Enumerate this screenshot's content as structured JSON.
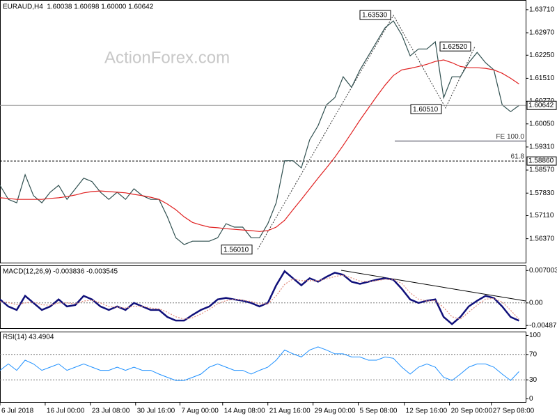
{
  "chart_data": [
    {
      "type": "line",
      "title": "EURAUD,H4  1.60038 1.60698 1.60000 1.60642",
      "watermark": "ActionForex.com",
      "xlim": [
        0,
        62.8
      ],
      "ylim": [
        1.5558,
        1.6402
      ],
      "grid": false,
      "yticks": [
        {
          "value": 1.6371,
          "label": "1.63710"
        },
        {
          "value": 1.6297,
          "label": "1.62970"
        },
        {
          "value": 1.6225,
          "label": "1.62250"
        },
        {
          "value": 1.6151,
          "label": "1.61510"
        },
        {
          "value": 1.6077,
          "label": "1.60770"
        },
        {
          "value": 1.6005,
          "label": "1.60050"
        },
        {
          "value": 1.5931,
          "label": "1.59310"
        },
        {
          "value": 1.5857,
          "label": "1.58570"
        },
        {
          "value": 1.5783,
          "label": "1.57830"
        },
        {
          "value": 1.5711,
          "label": "1.57110"
        },
        {
          "value": 1.5637,
          "label": "1.56370"
        }
      ],
      "series": [
        {
          "color": "#2f4f4f",
          "values": [
            1.5808,
            1.5763,
            1.5752,
            1.5842,
            1.5775,
            1.5752,
            1.5786,
            1.5808,
            1.5763,
            1.5797,
            1.5831,
            1.582,
            1.5786,
            1.5763,
            1.5786,
            1.5763,
            1.5797,
            1.5775,
            1.5763,
            1.5763,
            1.5707,
            1.564,
            1.5618,
            1.5629,
            1.5629,
            1.5629,
            1.564,
            1.5685,
            1.5674,
            1.5674,
            1.564,
            1.564,
            1.5685,
            1.5752,
            1.5887,
            1.5887,
            1.5864,
            1.5954,
            1.5999,
            1.6066,
            1.6089,
            1.6156,
            1.6122,
            1.6178,
            1.6223,
            1.6268,
            1.6313,
            1.6335,
            1.629,
            1.6223,
            1.6245,
            1.6245,
            1.6268,
            1.6089,
            1.6156,
            1.6156,
            1.6201,
            1.6234,
            1.6201,
            1.6178,
            1.6066,
            1.6044,
            1.6064
          ]
        },
        {
          "color": "#e02020",
          "values": [
            1.5768,
            1.5766,
            1.5763,
            1.5763,
            1.5763,
            1.5763,
            1.5766,
            1.5768,
            1.5772,
            1.5777,
            1.5784,
            1.5788,
            1.579,
            1.5788,
            1.5786,
            1.5784,
            1.5779,
            1.5775,
            1.577,
            1.5763,
            1.5748,
            1.573,
            1.5707,
            1.5689,
            1.5681,
            1.5674,
            1.5672,
            1.5669,
            1.5667,
            1.5665,
            1.5663,
            1.566,
            1.5663,
            1.5674,
            1.5696,
            1.573,
            1.5763,
            1.5797,
            1.5831,
            1.5864,
            1.5898,
            1.5936,
            1.5976,
            1.6017,
            1.6055,
            1.6093,
            1.6129,
            1.616,
            1.6178,
            1.6183,
            1.6189,
            1.6196,
            1.6205,
            1.621,
            1.6201,
            1.6189,
            1.6185,
            1.6185,
            1.6183,
            1.6178,
            1.6167,
            1.6151,
            1.6133
          ]
        }
      ],
      "last_price": {
        "value": 1.60642,
        "label": "1.60642"
      },
      "levels": [
        {
          "value": 1.5886,
          "label": "1.58860"
        }
      ],
      "fib_levels": [
        {
          "value": 1.595,
          "label": "FE 100.0"
        },
        {
          "value": 1.5886,
          "label": "61.8"
        }
      ],
      "annotations": [
        {
          "value": 1.6353,
          "label": "1.63530"
        },
        {
          "value": 1.6252,
          "label": "1.62520"
        },
        {
          "value": 1.6051,
          "label": "1.60510"
        },
        {
          "value": 1.5601,
          "label": "1.56010"
        }
      ]
    },
    {
      "type": "line",
      "title": "MACD(12,26,9) -0.003836 -0.003545",
      "xlim": [
        0,
        62.8
      ],
      "ylim": [
        -0.0056,
        0.0081
      ],
      "grid": true,
      "yticks": [
        0.007003,
        {
          "value": 0,
          "label": "0.00"
        },
        -0.004873
      ],
      "series": [
        {
          "color": "#10107a",
          "values": [
            0.00076,
            -0.00076,
            -0.00152,
            0.00152,
            0,
            -0.00152,
            -0.00076,
            0.00076,
            -0.00076,
            -0.00046,
            0.00152,
            0.00076,
            -0.00076,
            -0.00152,
            -0.00076,
            -0.00152,
            0,
            -0.00076,
            -0.00152,
            -0.00152,
            -0.00304,
            -0.00381,
            -0.00381,
            -0.00259,
            -0.00152,
            -0.00076,
            0.00076,
            0.00107,
            0.00076,
            0.00046,
            0,
            -0.00076,
            0,
            0.00381,
            0.00685,
            0.00533,
            0.00381,
            0.00533,
            0.00457,
            0.00563,
            0.00654,
            0.00609,
            0.00457,
            0.00411,
            0.00457,
            0.00502,
            0.00533,
            0.00502,
            0.00304,
            0.00076,
            0,
            0.00046,
            0.00076,
            -0.00304,
            -0.00457,
            -0.00304,
            -0.00076,
            0.00046,
            0.00152,
            0.00107,
            -0.00076,
            -0.00304,
            -0.00384
          ]
        },
        {
          "color": "#e08a7a",
          "dashed": true,
          "values": [
            0.0003,
            0.0001,
            -0.0004,
            0,
            0.0002,
            -0.0004,
            -0.0005,
            0,
            0,
            -0.0002,
            0.0004,
            0.0006,
            0,
            -0.0008,
            -0.0009,
            -0.0011,
            -0.0007,
            -0.0007,
            -0.0011,
            -0.0013,
            -0.002,
            -0.003,
            -0.0035,
            -0.0032,
            -0.0024,
            -0.0014,
            -0.0002,
            0.0005,
            0.0008,
            0.0006,
            0.0003,
            -0.0002,
            -0.0002,
            0.0015,
            0.004,
            0.0052,
            0.0048,
            0.0048,
            0.0048,
            0.0052,
            0.0057,
            0.006,
            0.0054,
            0.0047,
            0.0046,
            0.0048,
            0.0051,
            0.0051,
            0.0042,
            0.0022,
            0.0008,
            0.0004,
            0.0005,
            -0.001,
            -0.003,
            -0.0035,
            -0.002,
            -0.0005,
            0.0008,
            0.001,
            0.0002,
            -0.0016,
            -0.0035
          ]
        }
      ]
    },
    {
      "type": "line",
      "title": "RSI(14) 43.4904",
      "xlim": [
        0,
        62.8
      ],
      "ylim": [
        -6,
        106
      ],
      "grid": true,
      "yticks": [
        100,
        70,
        30,
        0
      ],
      "xticks": [
        {
          "value": 0,
          "label": "6 Jul 2018"
        },
        {
          "value": 5.4,
          "label": "16 Jul 00:00"
        },
        {
          "value": 10.8,
          "label": "23 Jul 08:00"
        },
        {
          "value": 16.2,
          "label": "30 Jul 16:00"
        },
        {
          "value": 21.5,
          "label": "7 Aug 00:00"
        },
        {
          "value": 26.6,
          "label": "14 Aug 08:00"
        },
        {
          "value": 32,
          "label": "21 Aug 16:00"
        },
        {
          "value": 37.4,
          "label": "29 Aug 00:00"
        },
        {
          "value": 42.8,
          "label": "5 Sep 08:00"
        },
        {
          "value": 48.3,
          "label": "12 Sep 16:00"
        },
        {
          "value": 53.7,
          "label": "20 Sep 00:00"
        },
        {
          "value": 58.7,
          "label": "27 Sep 08:00"
        }
      ],
      "series": [
        {
          "color": "#1e90ff",
          "values": [
            45,
            55,
            45,
            61,
            55,
            45,
            50,
            55,
            45,
            50,
            55,
            50,
            45,
            45,
            50,
            45,
            50,
            45,
            45,
            39,
            34,
            29,
            29,
            34,
            39,
            50,
            55,
            50,
            45,
            45,
            39,
            45,
            50,
            61,
            77,
            71,
            66,
            77,
            82,
            77,
            71,
            71,
            66,
            66,
            61,
            61,
            66,
            64,
            50,
            39,
            50,
            55,
            50,
            34,
            29,
            39,
            50,
            55,
            55,
            50,
            39,
            29,
            43
          ]
        }
      ]
    }
  ]
}
